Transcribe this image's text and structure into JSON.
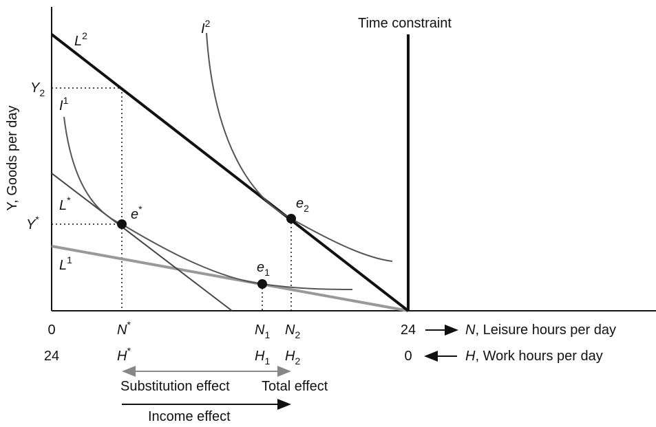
{
  "axes": {
    "y_label": "Y, Goods per day",
    "time_constraint": "Time constraint"
  },
  "labels": {
    "L2": {
      "base": "L",
      "sup": "2"
    },
    "I2": {
      "base": "I",
      "sup": "2"
    },
    "Y2": {
      "base": "Y",
      "sub": "2"
    },
    "I1": {
      "base": "I",
      "sup": "1"
    },
    "Lstar": {
      "base": "L",
      "sup": "*"
    },
    "estar": {
      "base": "e",
      "sup": "*"
    },
    "Ystar": {
      "base": "Y",
      "sup": "*"
    },
    "e2": {
      "base": "e",
      "sub": "2"
    },
    "L1": {
      "base": "L",
      "sup": "1"
    },
    "e1": {
      "base": "e",
      "sub": "1"
    }
  },
  "n_row": {
    "start": "0",
    "Nstar": {
      "base": "N",
      "sup": "*"
    },
    "N1": {
      "base": "N",
      "sub": "1"
    },
    "N2": {
      "base": "N",
      "sub": "2"
    },
    "end": "24",
    "axis_var": "N",
    "axis_text": ", Leisure hours per day"
  },
  "h_row": {
    "start": "24",
    "Hstar": {
      "base": "H",
      "sup": "*"
    },
    "H1": {
      "base": "H",
      "sub": "1"
    },
    "H2": {
      "base": "H",
      "sub": "2"
    },
    "end": "0",
    "axis_var": "H",
    "axis_text": ", Work hours per day"
  },
  "effects": {
    "substitution": "Substitution effect",
    "total": "Total effect",
    "income": "Income effect"
  }
}
